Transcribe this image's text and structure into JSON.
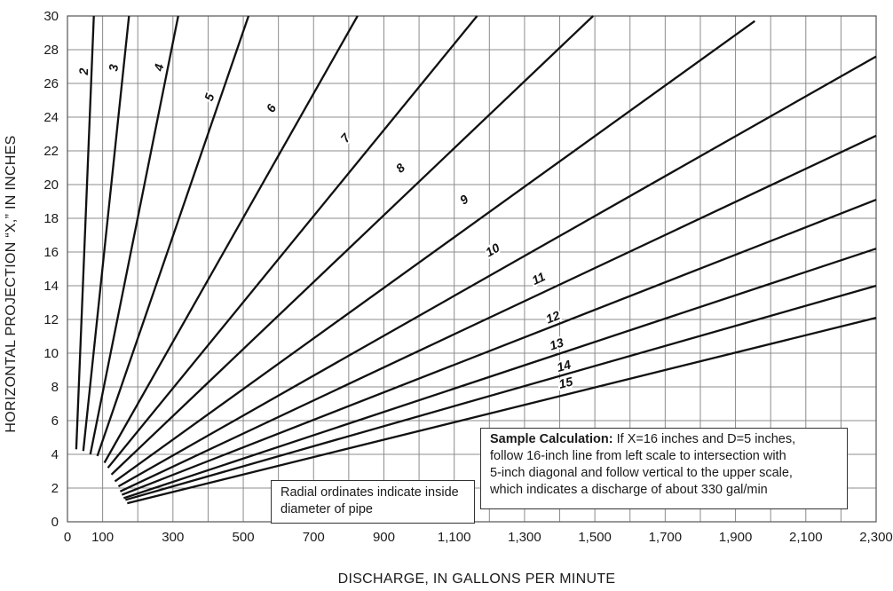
{
  "chart_data": {
    "type": "line",
    "title": "",
    "xlabel": "DISCHARGE, IN GALLONS PER MINUTE",
    "ylabel": "HORIZONTAL PROJECTION “X,” IN INCHES",
    "xlim": [
      0,
      2300
    ],
    "ylim": [
      0,
      30
    ],
    "x_ticks": [
      0,
      100,
      300,
      500,
      700,
      900,
      1100,
      1300,
      1500,
      1700,
      1900,
      2100,
      2300
    ],
    "x_tick_labels": [
      "0",
      "100",
      "300",
      "500",
      "700",
      "900",
      "1,100",
      "1,300",
      "1,500",
      "1,700",
      "1,900",
      "2,100",
      "2,300"
    ],
    "y_ticks": [
      0,
      2,
      4,
      6,
      8,
      10,
      12,
      14,
      16,
      18,
      20,
      22,
      24,
      26,
      28,
      30
    ],
    "y_tick_labels": [
      "0",
      "2",
      "4",
      "6",
      "8",
      "10",
      "12",
      "14",
      "16",
      "18",
      "20",
      "22",
      "24",
      "26",
      "28",
      "30"
    ],
    "grid": true,
    "series_note": "Radial ordinates indicate inside diameter of pipe",
    "series": [
      {
        "name": "2",
        "x": [
          25,
          75
        ],
        "y": [
          4.3,
          30
        ],
        "label_at": [
          58,
          26.7
        ]
      },
      {
        "name": "3",
        "x": [
          45,
          175
        ],
        "y": [
          4.2,
          30
        ],
        "label_at": [
          143,
          26.9
        ]
      },
      {
        "name": "4",
        "x": [
          65,
          315
        ],
        "y": [
          4.0,
          30
        ],
        "label_at": [
          272,
          26.9
        ]
      },
      {
        "name": "5",
        "x": [
          85,
          515
        ],
        "y": [
          3.9,
          30
        ],
        "label_at": [
          415,
          25.1
        ]
      },
      {
        "name": "6",
        "x": [
          105,
          825
        ],
        "y": [
          3.5,
          30
        ],
        "label_at": [
          590,
          24.4
        ]
      },
      {
        "name": "7",
        "x": [
          115,
          1165
        ],
        "y": [
          3.2,
          30
        ],
        "label_at": [
          800,
          22.6
        ]
      },
      {
        "name": "8",
        "x": [
          125,
          1495
        ],
        "y": [
          2.8,
          30
        ],
        "label_at": [
          955,
          20.8
        ]
      },
      {
        "name": "9",
        "x": [
          135,
          1955
        ],
        "y": [
          2.4,
          29.7
        ],
        "label_at": [
          1135,
          18.9
        ]
      },
      {
        "name": "10",
        "x": [
          145,
          2300
        ],
        "y": [
          2.1,
          27.6
        ],
        "label_at": [
          1215,
          15.9
        ]
      },
      {
        "name": "11",
        "x": [
          150,
          2300
        ],
        "y": [
          1.8,
          22.9
        ],
        "label_at": [
          1345,
          14.2
        ]
      },
      {
        "name": "12",
        "x": [
          155,
          2300
        ],
        "y": [
          1.6,
          19.1
        ],
        "label_at": [
          1385,
          11.9
        ]
      },
      {
        "name": "13",
        "x": [
          160,
          2300
        ],
        "y": [
          1.4,
          16.2
        ],
        "label_at": [
          1395,
          10.3
        ]
      },
      {
        "name": "14",
        "x": [
          165,
          2300
        ],
        "y": [
          1.3,
          14.0
        ],
        "label_at": [
          1415,
          9.0
        ]
      },
      {
        "name": "15",
        "x": [
          170,
          2300
        ],
        "y": [
          1.1,
          12.1
        ],
        "label_at": [
          1420,
          8.0
        ]
      }
    ],
    "annotation": {
      "bold": "Sample Calculation:",
      "lines": [
        " If X=16 inches and D=5 inches,",
        "follow 16-inch line from left scale to intersection with",
        "5-inch diagonal and follow vertical to the upper scale,",
        "which indicates a discharge of about 330 gal/min"
      ]
    },
    "colors": {
      "grid": "#8c8c8c",
      "line": "#111111",
      "text": "#1a1a1a"
    }
  }
}
